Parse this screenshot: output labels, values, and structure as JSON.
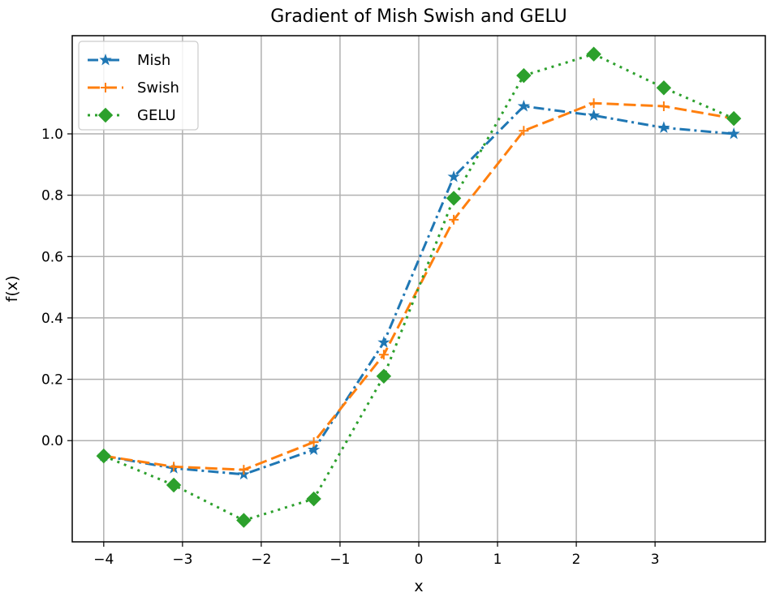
{
  "chart_data": {
    "type": "line",
    "title": "Gradient of Mish Swish and GELU",
    "xlabel": "x",
    "ylabel": "f(x)",
    "xlim": [
      -4.4,
      4.4
    ],
    "ylim": [
      -0.33,
      1.32
    ],
    "xticks": [
      -4,
      -3,
      -2,
      -1,
      0,
      1,
      2,
      3
    ],
    "xtick_labels": [
      "−4",
      "−3",
      "−2",
      "−1",
      "0",
      "1",
      "2",
      "3"
    ],
    "yticks": [
      0.0,
      0.2,
      0.4,
      0.6,
      0.8,
      1.0
    ],
    "ytick_labels": [
      "0.0",
      "0.2",
      "0.4",
      "0.6",
      "0.8",
      "1.0"
    ],
    "grid": true,
    "legend_position": "top-left",
    "x": [
      -4.0,
      -3.111,
      -2.222,
      -1.333,
      -0.444,
      0.444,
      1.333,
      2.222,
      3.111,
      4.0
    ],
    "series": [
      {
        "name": "Mish",
        "color": "#1f77b4",
        "line_style": "dashdot",
        "marker": "star",
        "values": [
          -0.05,
          -0.09,
          -0.11,
          -0.03,
          0.32,
          0.86,
          1.09,
          1.06,
          1.02,
          1.0
        ]
      },
      {
        "name": "Swish",
        "color": "#ff7f0e",
        "line_style": "dashed",
        "marker": "plus",
        "values": [
          -0.05,
          -0.085,
          -0.095,
          -0.005,
          0.28,
          0.72,
          1.01,
          1.1,
          1.09,
          1.05
        ]
      },
      {
        "name": "GELU",
        "color": "#2ca02c",
        "line_style": "dotted",
        "marker": "diamond",
        "values": [
          -0.05,
          -0.145,
          -0.26,
          -0.19,
          0.21,
          0.79,
          1.19,
          1.26,
          1.15,
          1.05
        ]
      }
    ]
  }
}
